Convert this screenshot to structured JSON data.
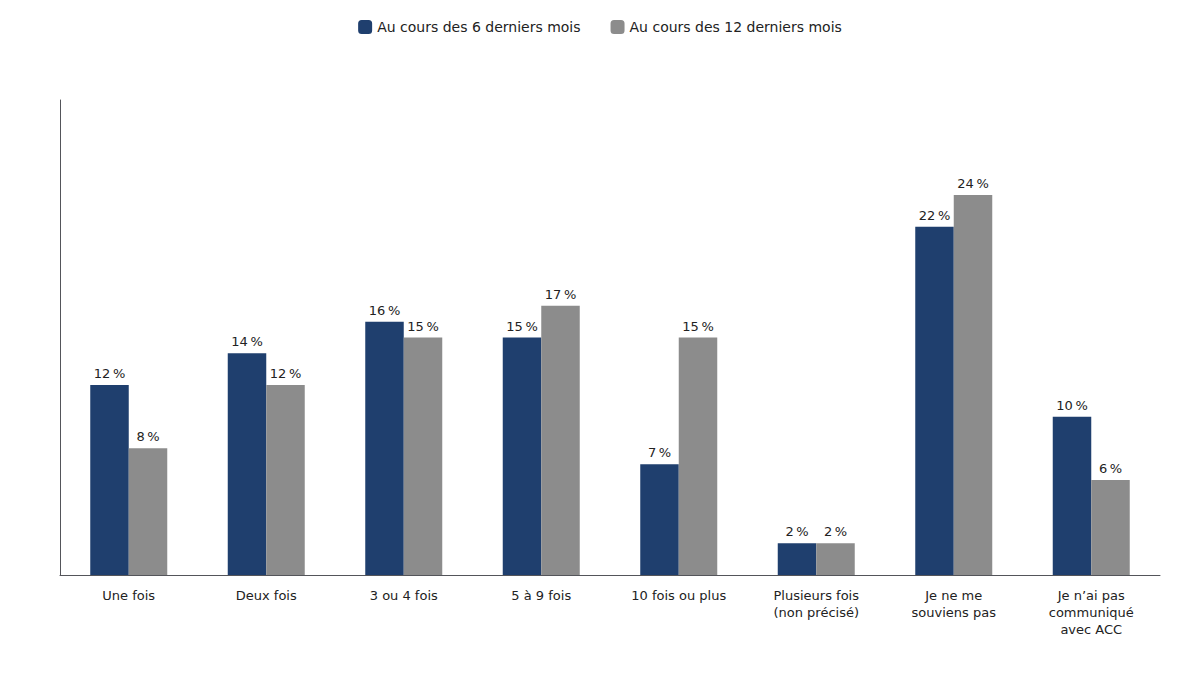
{
  "chart_data": {
    "type": "bar",
    "categories": [
      "Une fois",
      "Deux fois",
      "3 ou 4 fois",
      "5 à 9 fois",
      "10 fois ou plus",
      "Plusieurs fois\n(non précisé)",
      "Je ne me\nsouviens pas",
      "Je n’ai pas\ncommuniqué\navec ACC"
    ],
    "series": [
      {
        "name": "Au cours des 6 derniers mois",
        "color": "#1f3f6e",
        "values": [
          12,
          14,
          16,
          15,
          7,
          2,
          22,
          10
        ],
        "value_labels": [
          "12 %",
          "14 %",
          "16 %",
          "15 %",
          "7 %",
          "2 %",
          "22 %",
          "10 %"
        ]
      },
      {
        "name": "Au cours des 12 derniers mois",
        "color": "#8c8c8c",
        "values": [
          8,
          12,
          15,
          17,
          15,
          2,
          24,
          6
        ],
        "value_labels": [
          "8 %",
          "12 %",
          "15 %",
          "17 %",
          "15 %",
          "2 %",
          "24 %",
          "6 %"
        ]
      }
    ],
    "ylim": [
      0,
      30
    ],
    "grid": false,
    "legend": "top",
    "data_labels": true,
    "tick_labels": "x"
  }
}
